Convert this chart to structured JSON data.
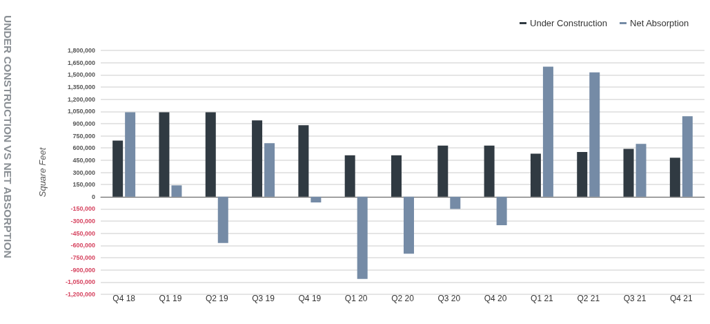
{
  "chart_data": {
    "type": "bar",
    "title": "UNDER CONSTRUCTION VS NET ABSORPTION",
    "ylabel": "Square Feet",
    "categories": [
      "Q4 18",
      "Q1 19",
      "Q2 19",
      "Q3 19",
      "Q4 19",
      "Q1 20",
      "Q2 20",
      "Q3 20",
      "Q4 20",
      "Q1 21",
      "Q2 21",
      "Q3 21",
      "Q4 21"
    ],
    "series": [
      {
        "name": "Under Construction",
        "color": "#303a42",
        "values": [
          690000,
          1040000,
          1040000,
          940000,
          880000,
          510000,
          510000,
          630000,
          630000,
          530000,
          550000,
          590000,
          480000
        ]
      },
      {
        "name": "Net Absorption",
        "color": "#758ba6",
        "values": [
          1040000,
          140000,
          -570000,
          660000,
          -70000,
          -1010000,
          -700000,
          -150000,
          -350000,
          1600000,
          1530000,
          650000,
          990000
        ]
      }
    ],
    "ylim": [
      -1200000,
      1800000
    ],
    "yticks": [
      {
        "value": -1200000,
        "label": "-1,200,000"
      },
      {
        "value": -1050000,
        "label": "-1,050,000"
      },
      {
        "value": -900000,
        "label": "-900,000"
      },
      {
        "value": -750000,
        "label": "-750,000"
      },
      {
        "value": -600000,
        "label": "-600,000"
      },
      {
        "value": -450000,
        "label": "-450,000"
      },
      {
        "value": -300000,
        "label": "-300,000"
      },
      {
        "value": -150000,
        "label": "-150,000"
      },
      0,
      {
        "value": 150000,
        "label": "150,000"
      },
      {
        "value": 300000,
        "label": "300,000"
      },
      {
        "value": 450000,
        "label": "450,000"
      },
      {
        "value": 600000,
        "label": "600,000"
      },
      {
        "value": 750000,
        "label": "750,000"
      },
      {
        "value": 900000,
        "label": "900,000"
      },
      {
        "value": 1050000,
        "label": "1,050,000"
      },
      {
        "value": 1200000,
        "label": "1,200,000"
      },
      {
        "value": 1350000,
        "label": "1,350,000"
      },
      {
        "value": 1500000,
        "label": "1,500,000"
      },
      {
        "value": 1650000,
        "label": "1,650,000"
      },
      {
        "value": 1800000,
        "label": "1,800,000"
      }
    ],
    "grid": "y",
    "legend": "top right"
  }
}
